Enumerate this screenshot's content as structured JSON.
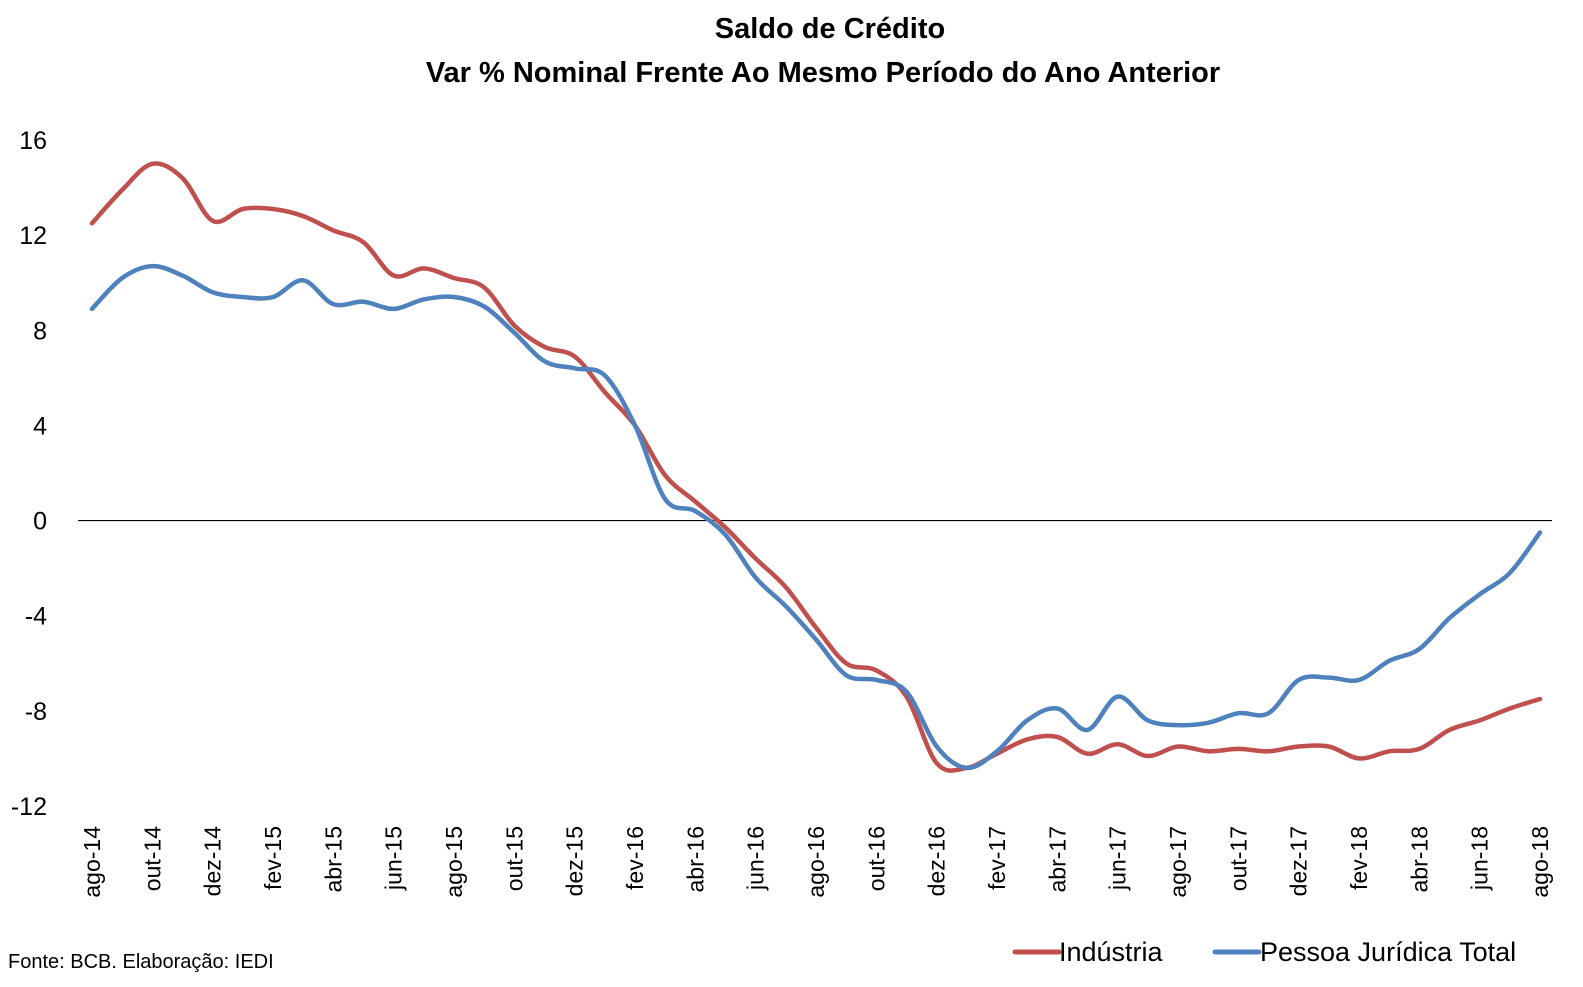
{
  "chart_data": {
    "type": "line",
    "title": "Saldo de Crédito",
    "subtitle": "Var % Nominal Frente Ao Mesmo Período do Ano Anterior",
    "xlabel": "",
    "ylabel": "",
    "ylim": [
      -12,
      16
    ],
    "yticks": [
      16,
      12,
      8,
      4,
      0,
      -4,
      -8,
      -12
    ],
    "grid": false,
    "legend_position": "bottom-right",
    "source": "Fonte: BCB. Elaboração: IEDI",
    "x": [
      "ago-14",
      "set-14",
      "out-14",
      "nov-14",
      "dez-14",
      "jan-15",
      "fev-15",
      "mar-15",
      "abr-15",
      "mai-15",
      "jun-15",
      "jul-15",
      "ago-15",
      "set-15",
      "out-15",
      "nov-15",
      "dez-15",
      "jan-16",
      "fev-16",
      "mar-16",
      "abr-16",
      "mai-16",
      "jun-16",
      "jul-16",
      "ago-16",
      "set-16",
      "out-16",
      "nov-16",
      "dez-16",
      "jan-17",
      "fev-17",
      "mar-17",
      "abr-17",
      "mai-17",
      "jun-17",
      "jul-17",
      "ago-17",
      "set-17",
      "out-17",
      "nov-17",
      "dez-17",
      "jan-18",
      "fev-18",
      "mar-18",
      "abr-18",
      "mai-18",
      "jun-18",
      "jul-18",
      "ago-18"
    ],
    "x_tick_labels": [
      "ago-14",
      "out-14",
      "dez-14",
      "fev-15",
      "abr-15",
      "jun-15",
      "ago-15",
      "out-15",
      "dez-15",
      "fev-16",
      "abr-16",
      "jun-16",
      "ago-16",
      "out-16",
      "dez-16",
      "fev-17",
      "abr-17",
      "jun-17",
      "ago-17",
      "out-17",
      "dez-17",
      "fev-18",
      "abr-18",
      "jun-18",
      "ago-18"
    ],
    "series": [
      {
        "name": "Indústria",
        "color": "#C0504D",
        "values": [
          12.5,
          13.9,
          15.0,
          14.4,
          12.6,
          13.1,
          13.1,
          12.8,
          12.2,
          11.7,
          10.3,
          10.6,
          10.2,
          9.8,
          8.2,
          7.3,
          6.9,
          5.4,
          4.0,
          1.9,
          0.8,
          -0.3,
          -1.6,
          -2.8,
          -4.5,
          -6.0,
          -6.3,
          -7.4,
          -10.2,
          -10.4,
          -9.8,
          -9.2,
          -9.1,
          -9.8,
          -9.4,
          -9.9,
          -9.5,
          -9.7,
          -9.6,
          -9.7,
          -9.5,
          -9.5,
          -10.0,
          -9.7,
          -9.6,
          -8.8,
          -8.4,
          -7.9,
          -7.5
        ]
      },
      {
        "name": "Pessoa Jurídica Total",
        "color": "#4F81BD",
        "values": [
          8.9,
          10.2,
          10.7,
          10.3,
          9.6,
          9.4,
          9.4,
          10.1,
          9.1,
          9.2,
          8.9,
          9.3,
          9.4,
          9.0,
          7.9,
          6.7,
          6.4,
          6.1,
          4.0,
          0.9,
          0.4,
          -0.6,
          -2.4,
          -3.6,
          -5.0,
          -6.5,
          -6.7,
          -7.2,
          -9.5,
          -10.4,
          -9.7,
          -8.4,
          -7.9,
          -8.8,
          -7.4,
          -8.4,
          -8.6,
          -8.5,
          -8.1,
          -8.1,
          -6.7,
          -6.6,
          -6.7,
          -5.9,
          -5.4,
          -4.1,
          -3.1,
          -2.2,
          -0.5
        ]
      }
    ]
  }
}
